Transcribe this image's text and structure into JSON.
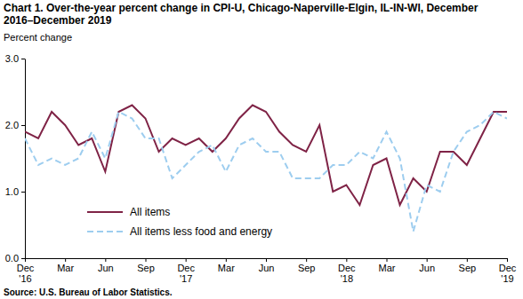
{
  "chart_data": {
    "type": "line",
    "title": "Chart 1. Over-the-year percent change in CPI-U, Chicago-Naperville-Elgin, IL-IN-WI, December 2016–December 2019",
    "y_label": "Percent change",
    "annotations": [
      "Source: U.S. Bureau of Labor Statistics."
    ],
    "categories": [
      "Dec '16",
      null,
      null,
      "Mar",
      null,
      null,
      "Jun",
      null,
      null,
      "Sep",
      null,
      null,
      "Dec '17",
      null,
      null,
      "Mar",
      null,
      null,
      "Jun",
      null,
      null,
      "Sep",
      null,
      null,
      "Dec '18",
      null,
      null,
      "Mar",
      null,
      null,
      "Jun",
      null,
      null,
      "Sep",
      null,
      null,
      "Dec '19"
    ],
    "series": [
      {
        "name": "All items",
        "color": "#7f2346",
        "line_style": "solid",
        "values": [
          1.9,
          1.8,
          2.2,
          2.0,
          1.7,
          1.8,
          1.3,
          2.2,
          2.3,
          2.1,
          1.6,
          1.8,
          1.7,
          1.8,
          1.6,
          1.8,
          2.1,
          2.3,
          2.2,
          1.9,
          1.7,
          1.6,
          2.0,
          1.0,
          1.1,
          0.8,
          1.4,
          1.5,
          0.8,
          1.2,
          1.0,
          1.6,
          1.6,
          1.4,
          1.8,
          2.2,
          2.2
        ]
      },
      {
        "name": "All items less food and energy",
        "color": "#9dcdef",
        "line_style": "dashed",
        "values": [
          1.8,
          1.4,
          1.5,
          1.4,
          1.5,
          1.9,
          1.5,
          2.2,
          2.1,
          1.8,
          1.8,
          1.2,
          1.4,
          1.6,
          1.7,
          1.3,
          1.7,
          1.8,
          1.6,
          1.6,
          1.2,
          1.2,
          1.2,
          1.4,
          1.4,
          1.6,
          1.5,
          1.9,
          1.5,
          0.4,
          1.1,
          1.0,
          1.6,
          1.9,
          2.0,
          2.2,
          2.1
        ]
      }
    ],
    "ylim": [
      0,
      3
    ],
    "yticks": [
      {
        "value": 0,
        "label": "0.0"
      },
      {
        "value": 1,
        "label": "1.0"
      },
      {
        "value": 2,
        "label": "2.0"
      },
      {
        "value": 3,
        "label": "3.0"
      }
    ],
    "grid": false,
    "legend": "lower left"
  }
}
